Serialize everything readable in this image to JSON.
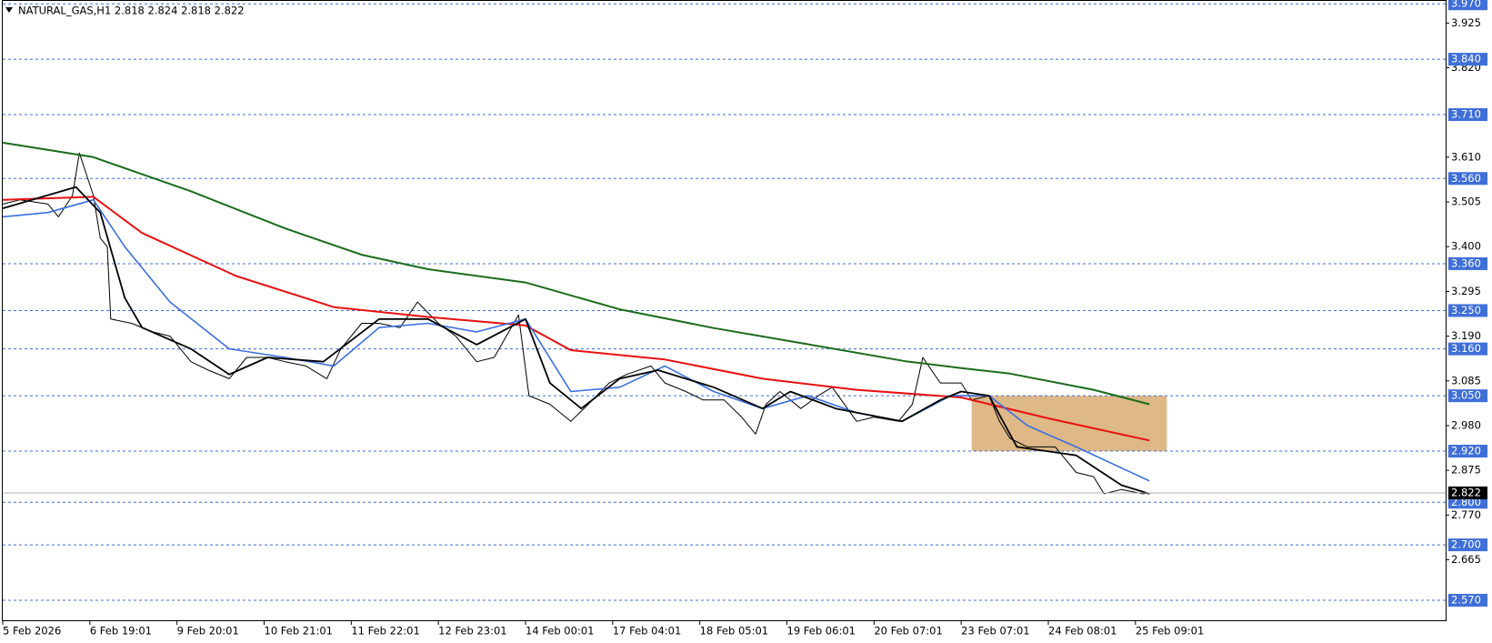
{
  "chart_data": {
    "type": "line",
    "title": "NATURAL_GAS,H1  2.818 2.824 2.818 2.822",
    "xlim": [
      0,
      414
    ],
    "xticks": [
      {
        "value": 0,
        "label": "5 Feb 2026"
      },
      {
        "value": 25,
        "label": "6 Feb 19:01"
      },
      {
        "value": 50,
        "label": "9 Feb 20:01"
      },
      {
        "value": 75,
        "label": "10 Feb 21:01"
      },
      {
        "value": 100,
        "label": "11 Feb 22:01"
      },
      {
        "value": 125,
        "label": "12 Feb 23:01"
      },
      {
        "value": 150,
        "label": "14 Feb 00:01"
      },
      {
        "value": 175,
        "label": "17 Feb 04:01"
      },
      {
        "value": 200,
        "label": "18 Feb 05:01"
      },
      {
        "value": 225,
        "label": "19 Feb 06:01"
      },
      {
        "value": 250,
        "label": "20 Feb 07:01"
      },
      {
        "value": 275,
        "label": "23 Feb 07:01"
      },
      {
        "value": 300,
        "label": "24 Feb 08:01"
      },
      {
        "value": 325,
        "label": "25 Feb 09:01"
      }
    ],
    "ylim": [
      2.523,
      3.979
    ],
    "yticks": [
      3.925,
      {
        "value": 3.82,
        "label": "3.820"
      },
      {
        "value": 3.61,
        "label": "3.610"
      },
      3.505,
      {
        "value": 3.4,
        "label": "3.400"
      },
      3.295,
      {
        "value": 3.19,
        "label": "3.190"
      },
      3.085,
      {
        "value": 2.98,
        "label": "2.980"
      },
      2.875,
      {
        "value": 2.77,
        "label": "2.770"
      },
      2.665
    ],
    "levels": [
      {
        "value": 3.97,
        "label": "3.970"
      },
      {
        "value": 3.84,
        "label": "3.840"
      },
      {
        "value": 3.71,
        "label": "3.710"
      },
      {
        "value": 3.56,
        "label": "3.560"
      },
      {
        "value": 3.36,
        "label": "3.360"
      },
      {
        "value": 3.25,
        "label": "3.250"
      },
      {
        "value": 3.16,
        "label": "3.160"
      },
      {
        "value": 3.05,
        "label": "3.050"
      },
      {
        "value": 2.92,
        "label": "2.920"
      },
      {
        "value": 2.8,
        "label": "2.800"
      },
      {
        "value": 2.7,
        "label": "2.700"
      },
      {
        "value": 2.57,
        "label": "2.570"
      }
    ],
    "level_color": "#3f6fd8",
    "current_price": 2.822,
    "zone": {
      "x": [
        278,
        334
      ],
      "y": [
        2.92,
        3.05
      ],
      "color": "#deb887"
    },
    "series": [
      {
        "color": "#000000",
        "width": 1,
        "x": [
          0,
          5,
          13,
          16,
          20,
          22,
          24,
          26,
          28,
          30,
          31,
          37,
          43,
          48,
          54,
          59,
          65,
          70,
          76,
          81,
          87,
          93,
          97,
          103,
          108,
          114,
          119,
          125,
          130,
          136,
          141,
          148,
          151,
          157,
          163,
          168,
          174,
          179,
          186,
          190,
          196,
          201,
          207,
          212,
          216,
          219,
          223,
          229,
          234,
          238,
          245,
          250,
          257,
          261,
          264,
          269,
          275,
          278,
          283,
          286,
          289,
          294,
          302,
          308,
          313,
          316,
          321,
          327,
          330
        ],
        "values": [
          3.5,
          3.51,
          3.5,
          3.47,
          3.52,
          3.62,
          3.57,
          3.52,
          3.42,
          3.4,
          3.23,
          3.22,
          3.2,
          3.19,
          3.13,
          3.11,
          3.09,
          3.14,
          3.14,
          3.13,
          3.12,
          3.09,
          3.16,
          3.22,
          3.22,
          3.21,
          3.27,
          3.22,
          3.19,
          3.13,
          3.14,
          3.24,
          3.05,
          3.03,
          2.99,
          3.03,
          3.08,
          3.1,
          3.12,
          3.08,
          3.06,
          3.04,
          3.04,
          3,
          2.96,
          3.03,
          3.06,
          3.02,
          3.05,
          3.07,
          2.99,
          3,
          2.99,
          3.03,
          3.14,
          3.08,
          3.08,
          3.04,
          3.05,
          2.99,
          2.95,
          2.93,
          2.93,
          2.87,
          2.86,
          2.82,
          2.83,
          2.82,
          2.822
        ]
      },
      {
        "color": "#1b6b1b",
        "width": 2,
        "x": [
          0,
          26,
          54,
          81,
          103,
          122,
          150,
          177,
          204,
          231,
          259,
          275,
          289,
          313,
          329
        ],
        "values": [
          3.644,
          3.61,
          3.53,
          3.443,
          3.381,
          3.347,
          3.316,
          3.253,
          3.209,
          3.171,
          3.131,
          3.115,
          3.102,
          3.064,
          3.03
        ]
      },
      {
        "color": "#e81010",
        "width": 2,
        "x": [
          0,
          26,
          40,
          67,
          95,
          122,
          150,
          163,
          190,
          218,
          245,
          275,
          300,
          329
        ],
        "values": [
          3.51,
          3.517,
          3.432,
          3.331,
          3.258,
          3.235,
          3.215,
          3.157,
          3.135,
          3.09,
          3.064,
          3.046,
          2.997,
          2.945
        ]
      },
      {
        "color": "#3a6fe0",
        "width": 1.6,
        "x": [
          0,
          13,
          26,
          35,
          48,
          65,
          81,
          95,
          108,
          122,
          136,
          150,
          163,
          177,
          190,
          204,
          218,
          231,
          245,
          258,
          272,
          283,
          294,
          308,
          329
        ],
        "values": [
          3.47,
          3.48,
          3.51,
          3.4,
          3.27,
          3.16,
          3.14,
          3.12,
          3.21,
          3.22,
          3.2,
          3.23,
          3.06,
          3.07,
          3.12,
          3.06,
          3.02,
          3.05,
          3.01,
          2.99,
          3.05,
          3.05,
          2.98,
          2.93,
          2.85
        ]
      },
      {
        "color": "#000000",
        "width": 1.8,
        "x": [
          0,
          21,
          28,
          35,
          40,
          54,
          65,
          76,
          92,
          108,
          122,
          136,
          150,
          157,
          166,
          177,
          188,
          204,
          218,
          226,
          239,
          258,
          269,
          275,
          283,
          291,
          308,
          321,
          329
        ],
        "values": [
          3.49,
          3.54,
          3.48,
          3.28,
          3.21,
          3.16,
          3.1,
          3.14,
          3.13,
          3.23,
          3.23,
          3.17,
          3.23,
          3.08,
          3.02,
          3.09,
          3.11,
          3.07,
          3.02,
          3.06,
          3.02,
          2.99,
          3.04,
          3.06,
          3.05,
          2.93,
          2.91,
          2.84,
          2.82
        ]
      }
    ]
  }
}
